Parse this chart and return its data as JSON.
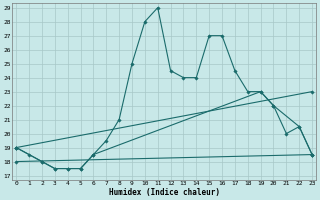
{
  "xlabel": "Humidex (Indice chaleur)",
  "background_color": "#c8e8e8",
  "grid_color": "#a8c8c8",
  "line_color": "#1a6b6b",
  "xlim": [
    0,
    23
  ],
  "ylim": [
    17,
    29
  ],
  "yticks": [
    17,
    18,
    19,
    20,
    21,
    22,
    23,
    24,
    25,
    26,
    27,
    28,
    29
  ],
  "xticks": [
    0,
    1,
    2,
    3,
    4,
    5,
    6,
    7,
    8,
    9,
    10,
    11,
    12,
    13,
    14,
    15,
    16,
    17,
    18,
    19,
    20,
    21,
    22,
    23
  ],
  "series1_x": [
    0,
    1,
    2,
    3,
    4,
    5,
    6,
    7,
    8,
    9,
    10,
    11,
    12,
    13,
    14,
    15,
    16,
    17,
    18,
    19,
    20,
    21,
    22,
    23
  ],
  "series1_y": [
    19,
    18.5,
    18,
    17.5,
    17.5,
    17.5,
    18.5,
    19.5,
    21,
    25,
    28,
    29,
    24.5,
    24,
    24,
    27,
    27,
    24.5,
    23,
    23,
    22,
    20,
    20.5,
    18.5
  ],
  "series2_x": [
    0,
    2,
    3,
    4,
    5,
    6,
    19,
    20,
    22,
    23
  ],
  "series2_y": [
    19,
    18,
    17.5,
    17.5,
    17.5,
    18.5,
    23,
    22,
    20.5,
    18.5
  ],
  "series3_x": [
    0,
    23
  ],
  "series3_y": [
    19,
    23
  ],
  "series4_x": [
    0,
    23
  ],
  "series4_y": [
    18,
    18.5
  ]
}
